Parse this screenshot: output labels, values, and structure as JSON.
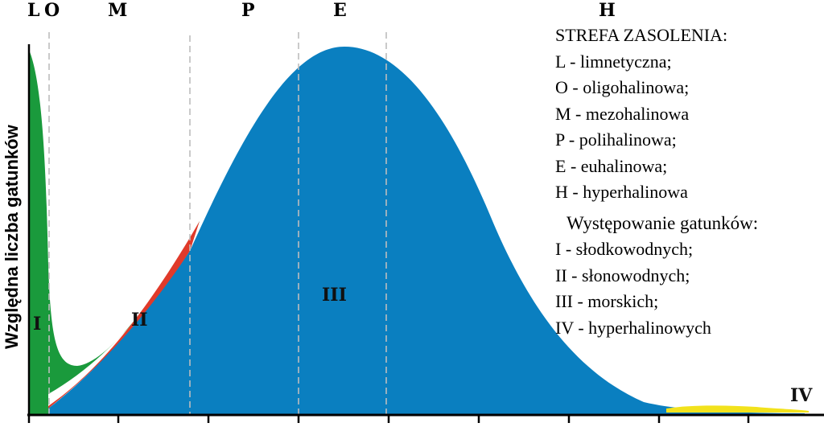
{
  "chart_data": {
    "type": "area",
    "ylabel": "Względna liczba gatunków",
    "xlabel": "",
    "zones": [
      "L",
      "O",
      "M",
      "P",
      "E",
      "H"
    ],
    "region_labels": [
      "I",
      "II",
      "III",
      "IV"
    ],
    "series": [
      {
        "key": "I",
        "color": "#1a9a3c"
      },
      {
        "key": "II",
        "color": "#e03a2a"
      },
      {
        "key": "III",
        "color": "#0a7fc0"
      },
      {
        "key": "IV",
        "color": "#f2e21c"
      }
    ],
    "grid": "dashed zone boundaries",
    "legend_position": "top-right"
  },
  "legend": {
    "zone_title": "STREFA ZASOLENIA:",
    "zone_items": [
      "L - limnetyczna;",
      "O - oligohalinowa;",
      "M - mezohalinowa",
      "P - polihalinowa;",
      "E - euhalinowa;",
      "H - hyperhalinowa"
    ],
    "occurrence_title": "Występowanie gatunków:",
    "occurrence_items": [
      "I - słodkowodnych;",
      "II - słonowodnych;",
      "III - morskich;",
      "IV - hyperhalinowych"
    ]
  }
}
